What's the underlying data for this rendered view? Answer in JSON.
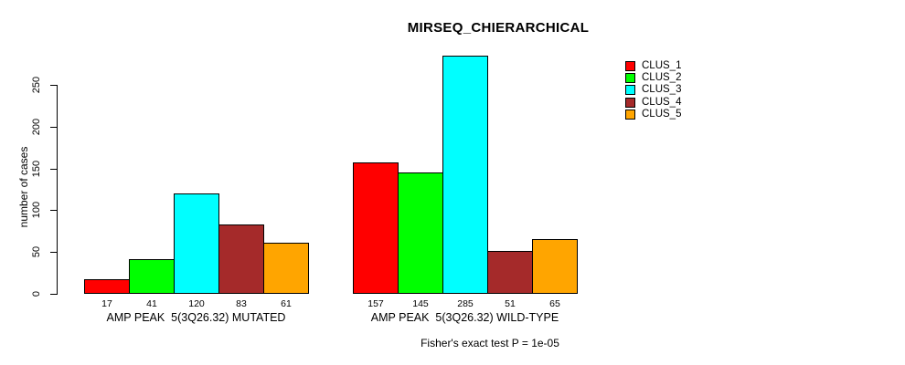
{
  "window": {
    "background_color": "#ffffff",
    "text_color": "#000000"
  },
  "chart_data": {
    "type": "bar",
    "title": "MIRSEQ_CHIERARCHICAL",
    "xlabel": "",
    "ylabel": "number of cases",
    "yticks": [
      0,
      50,
      100,
      150,
      200,
      250
    ],
    "ylim": [
      0,
      250
    ],
    "grid": false,
    "bar_outline_color": "#000000",
    "legend_position": "right-outside",
    "categories": [
      "AMP PEAK  5(3Q26.32) MUTATED",
      "AMP PEAK  5(3Q26.32) WILD-TYPE"
    ],
    "series": [
      {
        "name": "CLUS_1",
        "color": "#ff0000",
        "values": [
          17,
          157
        ]
      },
      {
        "name": "CLUS_2",
        "color": "#00ff00",
        "values": [
          41,
          145
        ]
      },
      {
        "name": "CLUS_3",
        "color": "#00ffff",
        "values": [
          120,
          285
        ]
      },
      {
        "name": "CLUS_4",
        "color": "#a52a2a",
        "values": [
          83,
          51
        ]
      },
      {
        "name": "CLUS_5",
        "color": "#ffa500",
        "values": [
          61,
          65
        ]
      }
    ],
    "bar_value_labels_shown": true,
    "footnote": "Fisher's exact test P = 1e-05"
  }
}
